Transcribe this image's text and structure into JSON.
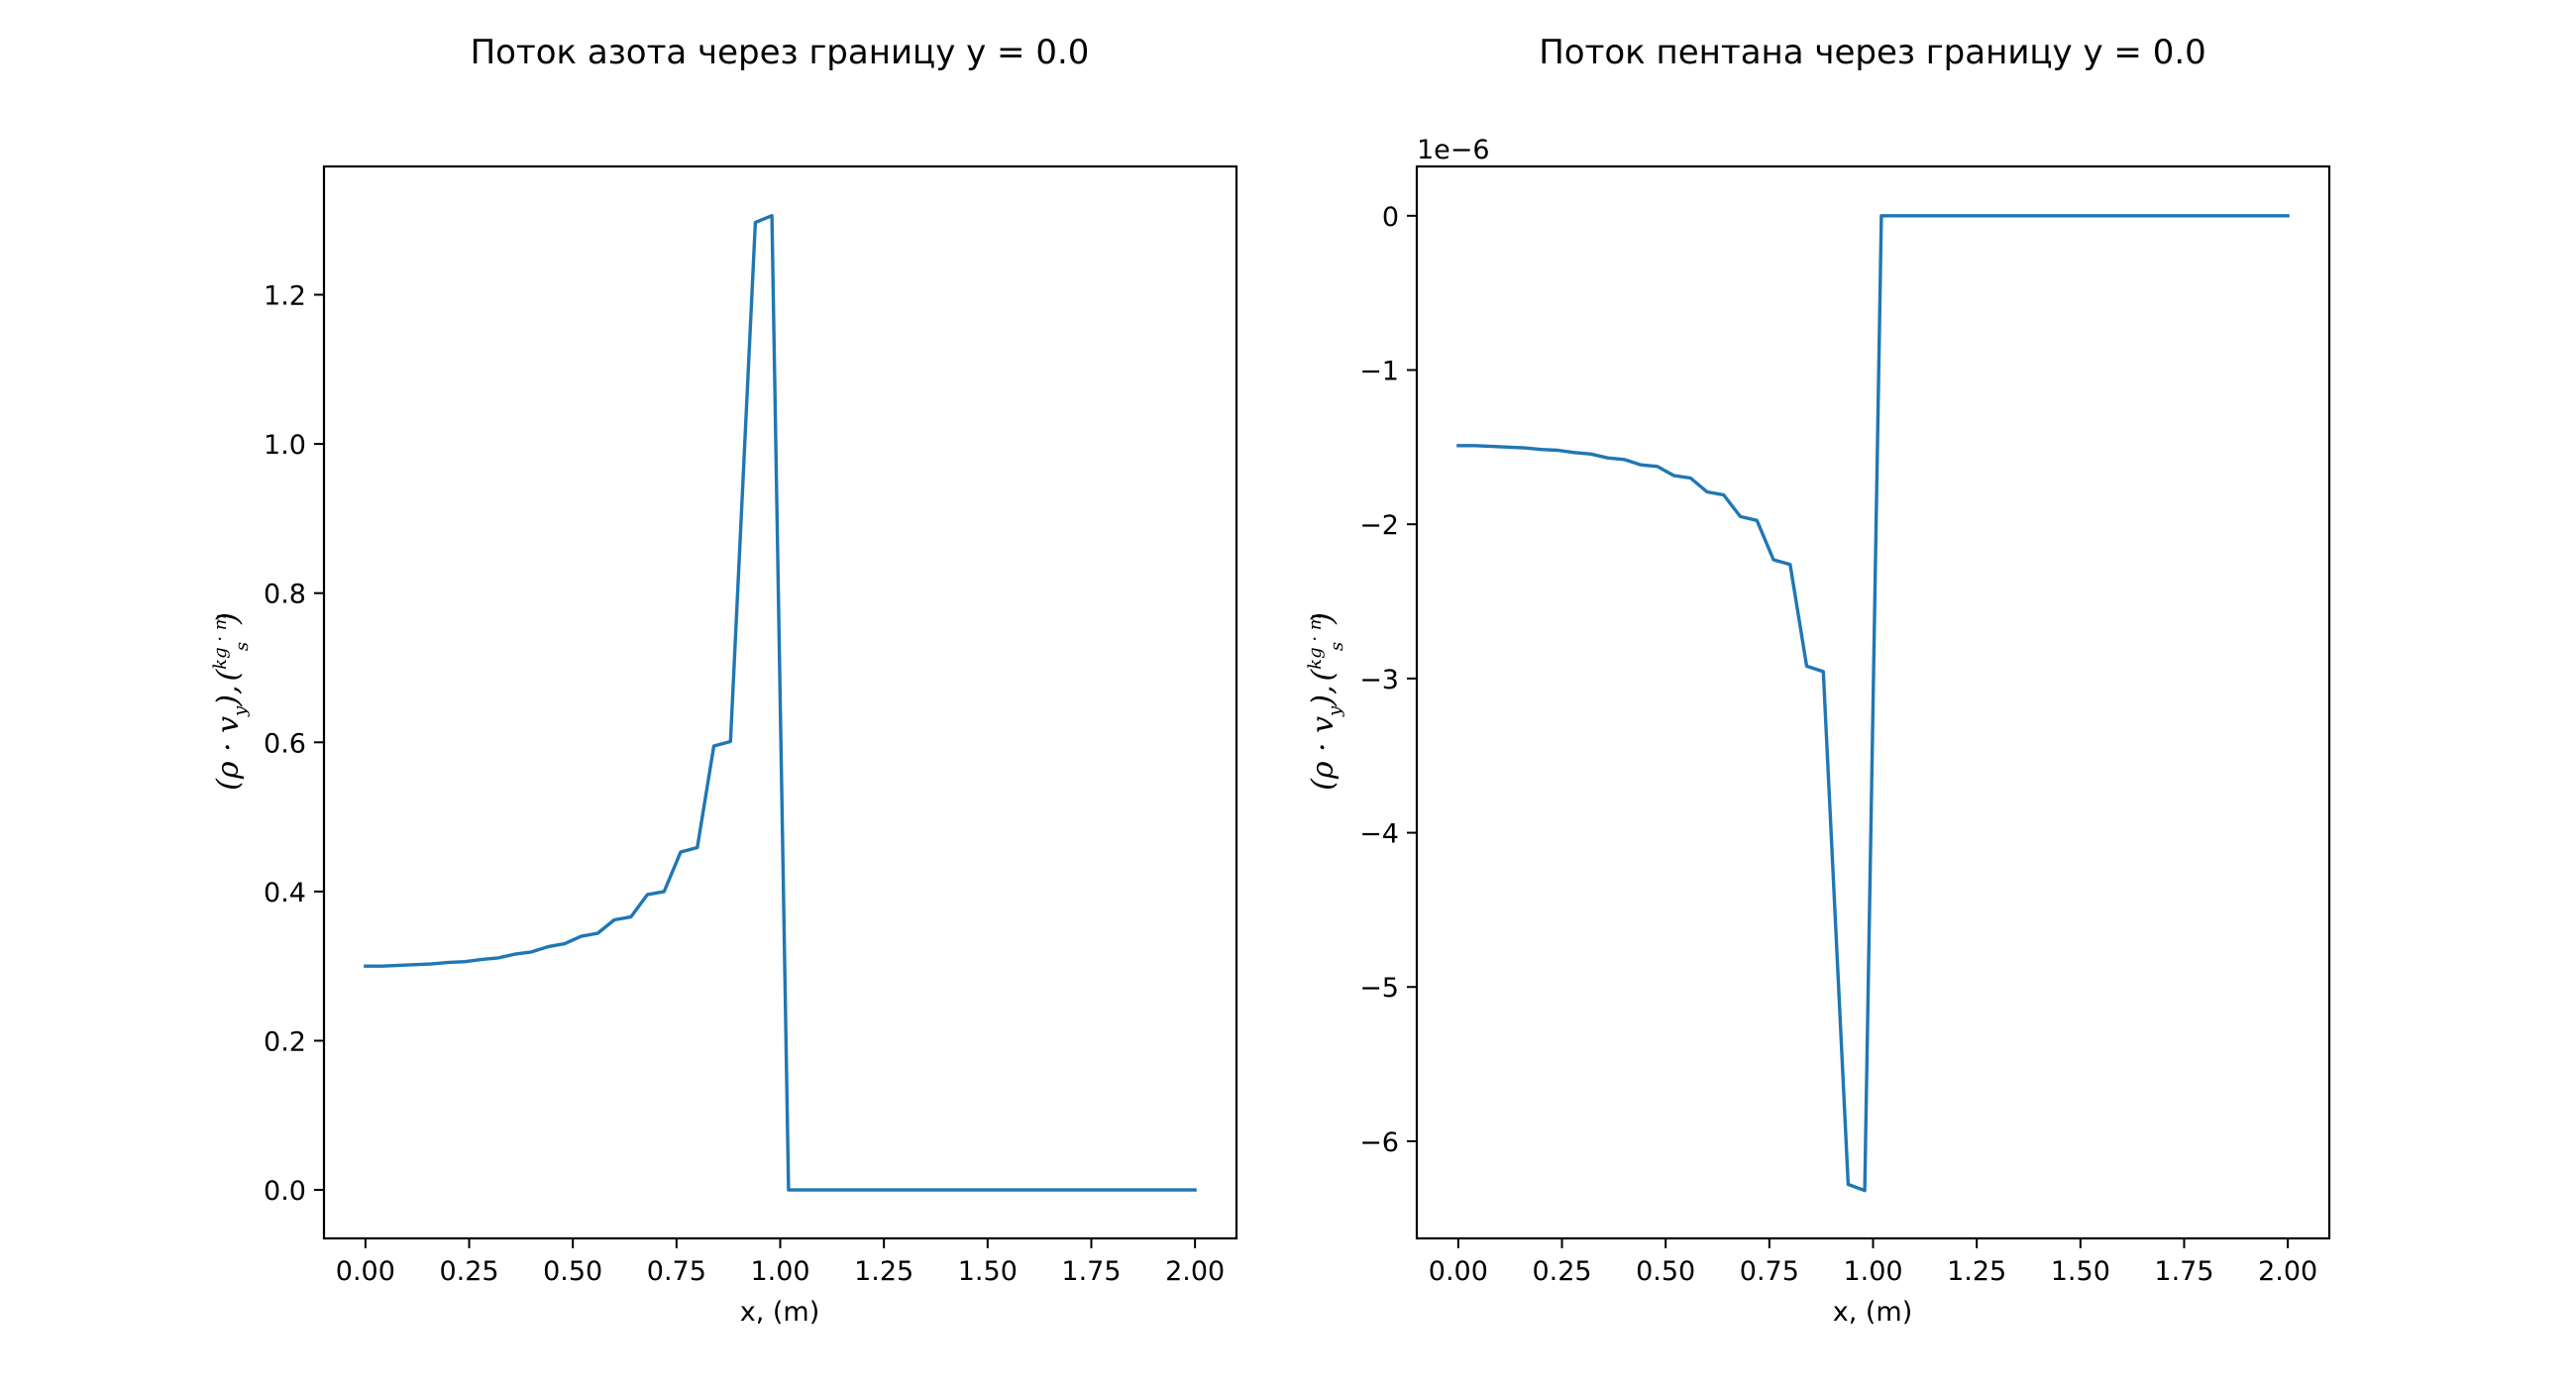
{
  "chart_data": [
    {
      "type": "line",
      "title": "Поток азота через границу y = 0.0",
      "xlabel": "x, (m)",
      "ylabel": {
        "main": "(ρ · v",
        "sub": "y",
        "rest": "),",
        "unit_num": "kg · m",
        "unit_den": "s"
      },
      "offset_text": "",
      "xlim": [
        -0.1,
        2.1
      ],
      "ylim": [
        -0.065,
        1.372
      ],
      "xticks": [
        0.0,
        0.25,
        0.5,
        0.75,
        1.0,
        1.25,
        1.5,
        1.75,
        2.0
      ],
      "xtick_labels": [
        "0.00",
        "0.25",
        "0.50",
        "0.75",
        "1.00",
        "1.25",
        "1.50",
        "1.75",
        "2.00"
      ],
      "yticks": [
        0.0,
        0.2,
        0.4,
        0.6,
        0.8,
        1.0,
        1.2
      ],
      "ytick_labels": [
        "0.0",
        "0.2",
        "0.4",
        "0.6",
        "0.8",
        "1.0",
        "1.2"
      ],
      "grid": false,
      "series": [
        {
          "color": "#1f77b4",
          "x": [
            0.0,
            0.04,
            0.08,
            0.12,
            0.16,
            0.2,
            0.24,
            0.28,
            0.32,
            0.36,
            0.4,
            0.44,
            0.48,
            0.52,
            0.56,
            0.6,
            0.64,
            0.68,
            0.72,
            0.76,
            0.8,
            0.84,
            0.88,
            0.94,
            0.98,
            1.02,
            2.0
          ],
          "y": [
            0.3,
            0.3,
            0.301,
            0.302,
            0.303,
            0.305,
            0.306,
            0.309,
            0.311,
            0.316,
            0.319,
            0.326,
            0.33,
            0.34,
            0.344,
            0.362,
            0.366,
            0.396,
            0.4,
            0.453,
            0.459,
            0.595,
            0.601,
            1.297,
            1.306,
            0.0,
            0.0
          ]
        }
      ]
    },
    {
      "type": "line",
      "title": "Поток пентана через границу y = 0.0",
      "xlabel": "x, (m)",
      "ylabel": {
        "main": "(ρ · v",
        "sub": "y",
        "rest": "),",
        "unit_num": "kg · m",
        "unit_den": "s"
      },
      "offset_text": "1e−6",
      "xlim": [
        -0.1,
        2.1
      ],
      "ylim": [
        -6.63,
        0.32
      ],
      "xticks": [
        0.0,
        0.25,
        0.5,
        0.75,
        1.0,
        1.25,
        1.5,
        1.75,
        2.0
      ],
      "xtick_labels": [
        "0.00",
        "0.25",
        "0.50",
        "0.75",
        "1.00",
        "1.25",
        "1.50",
        "1.75",
        "2.00"
      ],
      "yticks": [
        0,
        -1,
        -2,
        -3,
        -4,
        -5,
        -6
      ],
      "ytick_labels": [
        "0",
        "−1",
        "−2",
        "−3",
        "−4",
        "−5",
        "−6"
      ],
      "grid": false,
      "series": [
        {
          "color": "#1f77b4",
          "x": [
            0.0,
            0.04,
            0.08,
            0.12,
            0.16,
            0.2,
            0.24,
            0.28,
            0.32,
            0.36,
            0.4,
            0.44,
            0.48,
            0.52,
            0.56,
            0.6,
            0.64,
            0.68,
            0.72,
            0.76,
            0.8,
            0.84,
            0.88,
            0.94,
            0.98,
            1.02,
            2.0
          ],
          "y": [
            -1.49,
            -1.49,
            -1.495,
            -1.5,
            -1.505,
            -1.515,
            -1.52,
            -1.535,
            -1.545,
            -1.57,
            -1.58,
            -1.615,
            -1.625,
            -1.685,
            -1.7,
            -1.79,
            -1.81,
            -1.95,
            -1.975,
            -2.23,
            -2.26,
            -2.92,
            -2.955,
            -6.28,
            -6.32,
            0.0,
            0.0
          ]
        }
      ]
    }
  ]
}
